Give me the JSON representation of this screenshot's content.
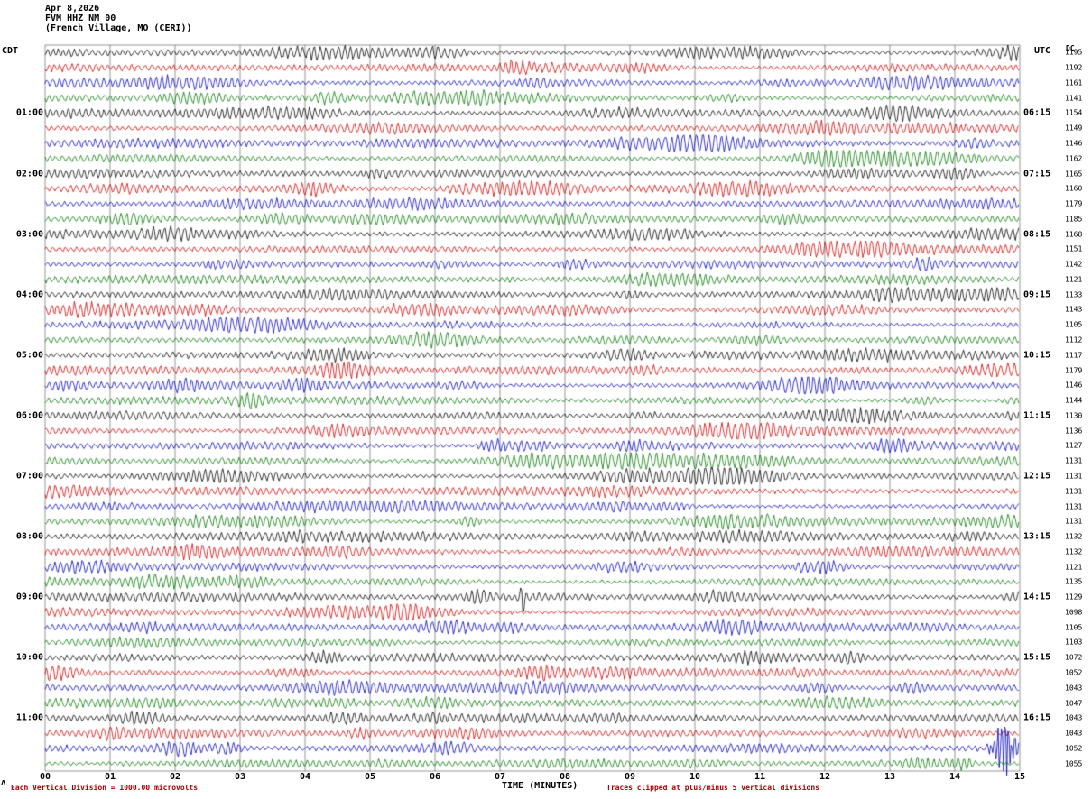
{
  "header": {
    "date": "Apr 8,2026",
    "station": "FVM HHZ NM 00",
    "location": "(French Village, MO (CERI))"
  },
  "axis_headers": {
    "left": "CDT",
    "right": "UTC",
    "dc": "DC"
  },
  "x_axis_label": "TIME (MINUTES)",
  "footer": {
    "scale": "Each Vertical Division = 1000.00 microvolts",
    "clip": "Traces clipped at plus/minus 5 vertical divisions",
    "scale_mark": "ʌ"
  },
  "chart_data": {
    "type": "line",
    "subtype": "helicorder-seismogram",
    "title": "FVM HHZ NM 00 (French Village, MO (CERI)) Apr 8,2026",
    "rows": 48,
    "minutes_per_row": 15,
    "trace_color_cycle": [
      "#000000",
      "#cc0000",
      "#0000bb",
      "#007700"
    ],
    "x_axis": {
      "label": "TIME (MINUTES)",
      "range": [
        0,
        15
      ],
      "ticks": [
        "00",
        "01",
        "02",
        "03",
        "04",
        "05",
        "06",
        "07",
        "08",
        "09",
        "10",
        "11",
        "12",
        "13",
        "14",
        "15"
      ]
    },
    "left_time_axis": {
      "tz": "CDT",
      "labels": [
        "01:00",
        "02:00",
        "03:00",
        "04:00",
        "05:00",
        "06:00",
        "07:00",
        "08:00",
        "09:00",
        "10:00",
        "11:00"
      ]
    },
    "right_time_axis": {
      "tz": "UTC",
      "labels": [
        "06:15",
        "07:15",
        "08:15",
        "09:15",
        "10:15",
        "11:15",
        "12:15",
        "13:15",
        "14:15",
        "15:15",
        "16:15"
      ]
    },
    "dc_offsets": [
      1195,
      1192,
      1161,
      1141,
      1154,
      1149,
      1146,
      1162,
      1165,
      1160,
      1179,
      1185,
      1168,
      1151,
      1142,
      1121,
      1133,
      1143,
      1105,
      1112,
      1117,
      1179,
      1146,
      1144,
      1130,
      1136,
      1127,
      1131,
      1131,
      1131,
      1131,
      1131,
      1132,
      1132,
      1121,
      1135,
      1129,
      1098,
      1105,
      1103,
      1072,
      1052,
      1043,
      1047,
      1043,
      1043,
      1052,
      1055
    ],
    "scale_note": "Each Vertical Division = 1000.00 microvolts",
    "clip_note": "Traces clipped at plus/minus 5 vertical divisions",
    "events": [
      {
        "row": 46,
        "trace_color": "#0000bb",
        "minute": 14.75,
        "amplitude": "large",
        "description": "high-amplitude seismic event burst near end of 11:30 CDT blue trace"
      },
      {
        "row": 36,
        "trace_color": "#000000",
        "minute": 7.35,
        "amplitude": "small",
        "description": "small transient spike on 09:00 CDT black trace"
      }
    ],
    "noise_seed": 4242
  }
}
